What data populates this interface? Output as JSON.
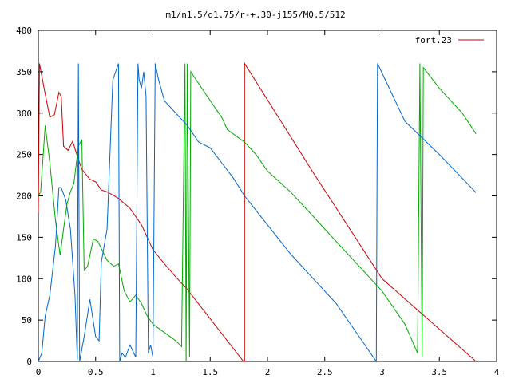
{
  "chart_data": {
    "type": "line",
    "title": "m1/n1.5/q1.75/r-+.30-j155/M0.5/512",
    "xlabel": "",
    "ylabel": "",
    "xlim": [
      0,
      4
    ],
    "ylim": [
      0,
      400
    ],
    "x_ticks": [
      "0",
      "0.5",
      "1",
      "1.5",
      "2",
      "2.5",
      "3",
      "3.5",
      "4"
    ],
    "y_ticks": [
      "0",
      "50",
      "100",
      "150",
      "200",
      "250",
      "300",
      "350",
      "400"
    ],
    "legend_position": "top-right",
    "legend": [
      {
        "label": "fort.23",
        "color": "#cc0000"
      }
    ],
    "series": [
      {
        "name": "fort.23",
        "color": "#cc0000",
        "points": [
          [
            0,
            180
          ],
          [
            0.01,
            360
          ],
          [
            0.05,
            330
          ],
          [
            0.1,
            295
          ],
          [
            0.14,
            298
          ],
          [
            0.18,
            325
          ],
          [
            0.2,
            320
          ],
          [
            0.22,
            260
          ],
          [
            0.26,
            255
          ],
          [
            0.3,
            266
          ],
          [
            0.34,
            248
          ],
          [
            0.38,
            232
          ],
          [
            0.45,
            220
          ],
          [
            0.5,
            217
          ],
          [
            0.55,
            207
          ],
          [
            0.6,
            205
          ],
          [
            0.7,
            197
          ],
          [
            0.8,
            185
          ],
          [
            0.9,
            165
          ],
          [
            1.0,
            135
          ],
          [
            1.1,
            118
          ],
          [
            1.2,
            102
          ],
          [
            1.3,
            87
          ],
          [
            1.79,
            0
          ],
          [
            1.8,
            0
          ],
          [
            1.8,
            360
          ],
          [
            2.4,
            228
          ],
          [
            3.0,
            100
          ],
          [
            3.82,
            0
          ]
        ]
      },
      {
        "color": "#00aa00",
        "points": [
          [
            0,
            200
          ],
          [
            0.02,
            205
          ],
          [
            0.06,
            285
          ],
          [
            0.1,
            240
          ],
          [
            0.15,
            170
          ],
          [
            0.19,
            128
          ],
          [
            0.22,
            160
          ],
          [
            0.25,
            190
          ],
          [
            0.28,
            205
          ],
          [
            0.31,
            215
          ],
          [
            0.35,
            260
          ],
          [
            0.38,
            268
          ],
          [
            0.4,
            110
          ],
          [
            0.43,
            115
          ],
          [
            0.48,
            148
          ],
          [
            0.52,
            145
          ],
          [
            0.6,
            122
          ],
          [
            0.66,
            115
          ],
          [
            0.7,
            118
          ],
          [
            0.75,
            85
          ],
          [
            0.8,
            72
          ],
          [
            0.85,
            80
          ],
          [
            0.9,
            70
          ],
          [
            0.95,
            55
          ],
          [
            1.0,
            45
          ],
          [
            1.1,
            35
          ],
          [
            1.2,
            25
          ],
          [
            1.25,
            18
          ],
          [
            1.28,
            360
          ],
          [
            1.29,
            0
          ],
          [
            1.3,
            360
          ],
          [
            1.32,
            5
          ],
          [
            1.33,
            350
          ],
          [
            1.5,
            315
          ],
          [
            1.6,
            295
          ],
          [
            1.65,
            280
          ],
          [
            1.8,
            265
          ],
          [
            1.9,
            250
          ],
          [
            2.0,
            230
          ],
          [
            2.2,
            205
          ],
          [
            2.4,
            175
          ],
          [
            2.6,
            145
          ],
          [
            2.8,
            115
          ],
          [
            3.0,
            85
          ],
          [
            3.2,
            45
          ],
          [
            3.31,
            10
          ],
          [
            3.33,
            360
          ],
          [
            3.35,
            5
          ],
          [
            3.36,
            355
          ],
          [
            3.5,
            330
          ],
          [
            3.6,
            315
          ],
          [
            3.7,
            300
          ],
          [
            3.82,
            275
          ]
        ]
      },
      {
        "color": "#0066cc",
        "points": [
          [
            0,
            0
          ],
          [
            0.03,
            10
          ],
          [
            0.06,
            55
          ],
          [
            0.1,
            80
          ],
          [
            0.15,
            140
          ],
          [
            0.18,
            210
          ],
          [
            0.2,
            210
          ],
          [
            0.24,
            195
          ],
          [
            0.28,
            160
          ],
          [
            0.32,
            80
          ],
          [
            0.34,
            2
          ],
          [
            0.35,
            360
          ],
          [
            0.36,
            0
          ],
          [
            0.4,
            30
          ],
          [
            0.45,
            75
          ],
          [
            0.5,
            30
          ],
          [
            0.53,
            25
          ],
          [
            0.55,
            120
          ],
          [
            0.6,
            160
          ],
          [
            0.65,
            340
          ],
          [
            0.7,
            360
          ],
          [
            0.71,
            0
          ],
          [
            0.73,
            10
          ],
          [
            0.76,
            5
          ],
          [
            0.8,
            20
          ],
          [
            0.85,
            5
          ],
          [
            0.87,
            360
          ],
          [
            0.88,
            340
          ],
          [
            0.9,
            330
          ],
          [
            0.92,
            350
          ],
          [
            0.94,
            320
          ],
          [
            0.96,
            10
          ],
          [
            0.98,
            20
          ],
          [
            1.0,
            5
          ],
          [
            1.02,
            360
          ],
          [
            1.05,
            340
          ],
          [
            1.1,
            315
          ],
          [
            1.2,
            300
          ],
          [
            1.3,
            285
          ],
          [
            1.4,
            265
          ],
          [
            1.5,
            258
          ],
          [
            1.6,
            240
          ],
          [
            1.7,
            222
          ],
          [
            1.8,
            200
          ],
          [
            2.0,
            165
          ],
          [
            2.2,
            130
          ],
          [
            2.4,
            100
          ],
          [
            2.6,
            70
          ],
          [
            2.8,
            30
          ],
          [
            2.95,
            0
          ],
          [
            2.96,
            360
          ],
          [
            3.2,
            290
          ],
          [
            3.5,
            250
          ],
          [
            3.82,
            204
          ]
        ]
      }
    ]
  }
}
